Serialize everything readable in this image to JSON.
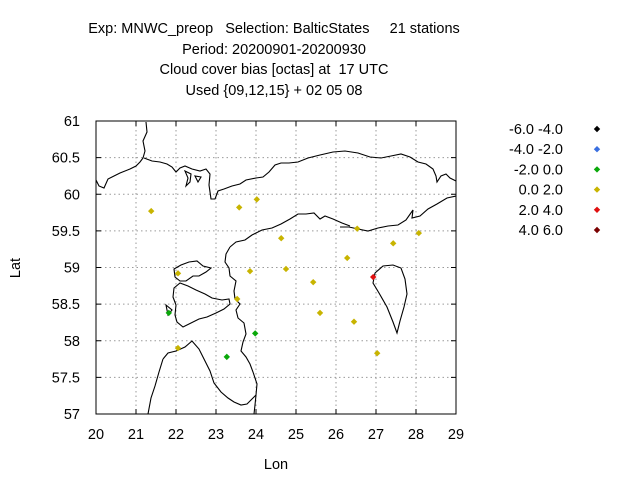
{
  "title_lines": [
    "Exp: MNWC_preop   Selection: BalticStates     21 stations",
    "Period: 20200901-20200930",
    "Cloud cover bias [octas] at  17 UTC",
    "Used {09,12,15} + 02 05 08"
  ],
  "chart_data": {
    "type": "scatter",
    "xlabel": "Lon",
    "ylabel": "Lat",
    "xlim": [
      20,
      29
    ],
    "ylim": [
      57,
      61
    ],
    "xticks": [
      20,
      21,
      22,
      23,
      24,
      25,
      26,
      27,
      28,
      29
    ],
    "yticks": [
      57,
      57.5,
      58,
      58.5,
      59,
      59.5,
      60,
      60.5,
      61
    ],
    "ytick_labels": [
      "57",
      "57.5",
      "58",
      "58.5",
      "59",
      "59.5",
      "60",
      "60.5",
      "61"
    ],
    "grid": true,
    "legend_position": "right",
    "legend": [
      {
        "label": "-6.0 -4.0",
        "color": "#000000"
      },
      {
        "label": "-4.0 -2.0",
        "color": "#3a6fe0"
      },
      {
        "label": "-2.0 0.0",
        "color": "#0aa80a"
      },
      {
        "label": "0.0 2.0",
        "color": "#c8b400"
      },
      {
        "label": "2.0 4.0",
        "color": "#e01010"
      },
      {
        "label": "4.0 6.0",
        "color": "#7a0000"
      }
    ],
    "points": [
      {
        "x": 21.38,
        "y": 59.77,
        "bin": 3
      },
      {
        "x": 23.58,
        "y": 59.82,
        "bin": 3
      },
      {
        "x": 24.02,
        "y": 59.93,
        "bin": 3
      },
      {
        "x": 24.63,
        "y": 59.4,
        "bin": 3
      },
      {
        "x": 26.53,
        "y": 59.53,
        "bin": 3
      },
      {
        "x": 27.43,
        "y": 59.33,
        "bin": 3
      },
      {
        "x": 28.07,
        "y": 59.47,
        "bin": 3
      },
      {
        "x": 22.05,
        "y": 58.92,
        "bin": 3
      },
      {
        "x": 23.85,
        "y": 58.95,
        "bin": 3
      },
      {
        "x": 24.75,
        "y": 58.98,
        "bin": 3
      },
      {
        "x": 26.28,
        "y": 59.13,
        "bin": 3
      },
      {
        "x": 25.43,
        "y": 58.8,
        "bin": 3
      },
      {
        "x": 23.53,
        "y": 58.57,
        "bin": 3
      },
      {
        "x": 25.6,
        "y": 58.38,
        "bin": 3
      },
      {
        "x": 26.45,
        "y": 58.26,
        "bin": 3
      },
      {
        "x": 22.05,
        "y": 57.9,
        "bin": 3
      },
      {
        "x": 27.03,
        "y": 57.83,
        "bin": 3
      },
      {
        "x": 26.93,
        "y": 58.87,
        "bin": 4
      },
      {
        "x": 21.82,
        "y": 58.38,
        "bin": 2
      },
      {
        "x": 23.98,
        "y": 58.1,
        "bin": 2
      },
      {
        "x": 23.27,
        "y": 57.78,
        "bin": 2
      }
    ]
  }
}
